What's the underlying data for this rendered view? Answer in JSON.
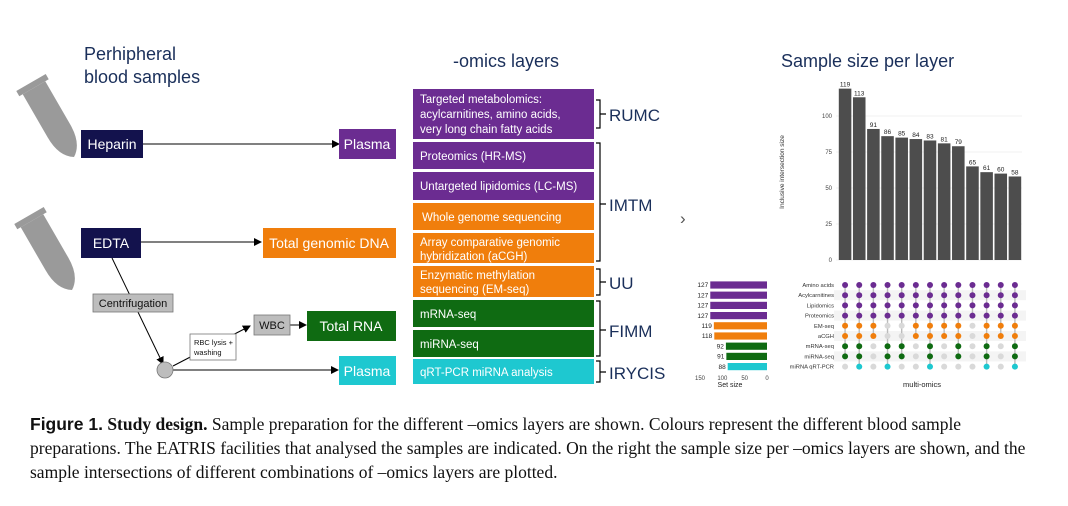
{
  "diagram": {
    "headings": {
      "blood": [
        "Perhipheral",
        "blood samples"
      ],
      "omics": "-omics layers",
      "sample_size": "Sample size per layer"
    },
    "tubes": {
      "heparin": "Heparin",
      "edta": "EDTA"
    },
    "steps": {
      "centrifugation": "Centrifugation",
      "rbc_lysis": [
        "RBC lysis +",
        "washing"
      ],
      "wbc": "WBC"
    },
    "fractions": {
      "plasma_top": "Plasma",
      "genomic_dna": "Total genomic DNA",
      "total_rna": "Total RNA",
      "plasma_bottom": "Plasma"
    },
    "layers": [
      {
        "lines": [
          "Targeted metabolomics:",
          "acylcarnitines, amino acids,",
          "very long chain fatty acids"
        ],
        "color": "#6b2c91"
      },
      {
        "lines": [
          "Proteomics (HR-MS)"
        ],
        "color": "#6b2c91"
      },
      {
        "lines": [
          "Untargeted lipidomics (LC-MS)"
        ],
        "color": "#6b2c91"
      },
      {
        "lines": [
          "Whole genome sequencing"
        ],
        "color": "#f07e0c"
      },
      {
        "lines": [
          "Array comparative genomic",
          "hybridization (aCGH)"
        ],
        "color": "#f07e0c"
      },
      {
        "lines": [
          "Enzymatic methylation",
          "sequencing (EM-seq)"
        ],
        "color": "#f07e0c"
      },
      {
        "lines": [
          "mRNA-seq"
        ],
        "color": "#0f6b12"
      },
      {
        "lines": [
          "miRNA-seq"
        ],
        "color": "#0f6b12"
      },
      {
        "lines": [
          "qRT-PCR miRNA analysis"
        ],
        "color": "#1ec8d0"
      }
    ],
    "facilities": [
      "RUMC",
      "IMTM",
      "UU",
      "FIMM",
      "IRYCIS"
    ],
    "arrow_glyph": "›",
    "colors": {
      "heparin": "#13124d",
      "edta": "#13124d",
      "purple": "#6b2c91",
      "orange": "#f07e0c",
      "green": "#0f6b12",
      "cyan": "#1ec8d0",
      "bar": "#4d4d4d",
      "grey_box": "#bdbdbd"
    }
  },
  "chart_data": {
    "type": "bar",
    "title": "Sample size per layer",
    "ylabel": "Inclusive intersection size",
    "xlabel": "multi-omics",
    "ylim": [
      0,
      125
    ],
    "yticks": [
      0,
      25,
      50,
      75,
      100
    ],
    "values": [
      119,
      113,
      91,
      86,
      85,
      84,
      83,
      81,
      79,
      65,
      61,
      60,
      58
    ],
    "sets": [
      "Amino acids",
      "Acylcarnitines",
      "Lipidomics",
      "Proteomics",
      "EM-seq",
      "aCGH",
      "mRNA-seq",
      "miRNA-seq",
      "miRNA qRT-PCR"
    ],
    "set_size_title": "Set size",
    "set_size_axis_ticks": [
      "150",
      "100",
      "50",
      "0"
    ],
    "set_size_values": [
      127,
      127,
      127,
      127,
      119,
      118,
      92,
      91,
      88
    ],
    "set_colors": [
      "#6b2c91",
      "#6b2c91",
      "#6b2c91",
      "#6b2c91",
      "#f07e0c",
      "#f07e0c",
      "#0f6b12",
      "#0f6b12",
      "#1ec8d0"
    ],
    "membership": [
      [
        1,
        1,
        1,
        1,
        1,
        1,
        1,
        1,
        0
      ],
      [
        1,
        1,
        1,
        1,
        1,
        1,
        1,
        1,
        1
      ],
      [
        1,
        1,
        1,
        1,
        1,
        1,
        0,
        0,
        0
      ],
      [
        1,
        1,
        1,
        1,
        0,
        0,
        1,
        1,
        1
      ],
      [
        1,
        1,
        1,
        1,
        0,
        0,
        1,
        1,
        0
      ],
      [
        1,
        1,
        1,
        1,
        1,
        1,
        0,
        0,
        0
      ],
      [
        1,
        1,
        1,
        1,
        1,
        1,
        1,
        1,
        1
      ],
      [
        1,
        1,
        1,
        1,
        1,
        1,
        0,
        0,
        0
      ],
      [
        1,
        1,
        1,
        1,
        1,
        1,
        1,
        1,
        0
      ],
      [
        1,
        1,
        1,
        1,
        0,
        0,
        0,
        0,
        0
      ],
      [
        1,
        1,
        1,
        1,
        1,
        1,
        1,
        1,
        1
      ],
      [
        1,
        1,
        1,
        1,
        1,
        1,
        0,
        0,
        0
      ],
      [
        1,
        1,
        1,
        1,
        1,
        1,
        1,
        1,
        1
      ]
    ]
  },
  "caption": {
    "label": "Figure 1.",
    "title": "Study design.",
    "text": " Sample preparation for the different –omics layers are shown. Colours represent the different blood sample preparations. The EATRIS facilities that analysed the samples are indicated. On the right the sample size per –omics layers are shown, and the sample intersections of different combinations of –omics layers are plotted."
  }
}
